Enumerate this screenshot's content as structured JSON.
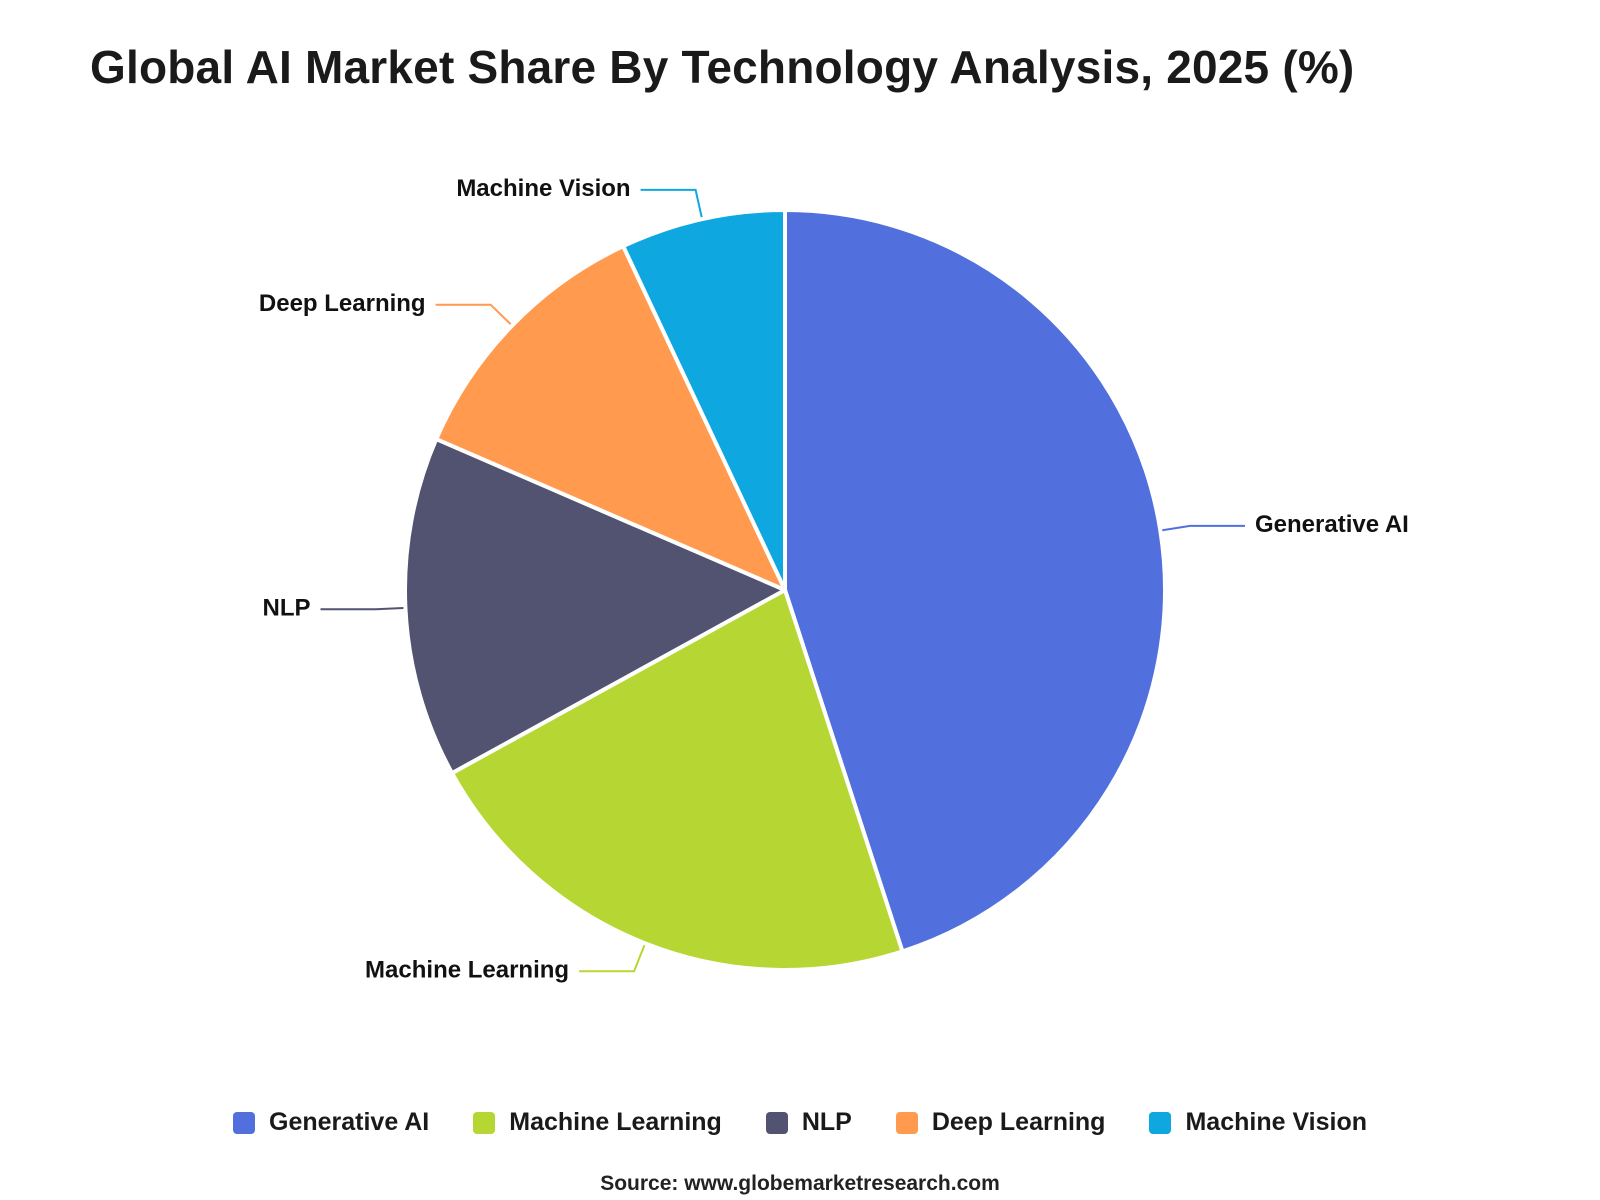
{
  "chart_data": {
    "type": "pie",
    "title": "Global AI Market Share By Technology Analysis, 2025 (%)",
    "slices": [
      {
        "name": "Generative AI",
        "value": 45.0,
        "color": "#5170DD"
      },
      {
        "name": "Machine Learning",
        "value": 22.0,
        "color": "#B6D733"
      },
      {
        "name": "NLP",
        "value": 14.5,
        "color": "#515370"
      },
      {
        "name": "Deep Learning",
        "value": 11.5,
        "color": "#FF9A4F"
      },
      {
        "name": "Machine Vision",
        "value": 7.0,
        "color": "#0FA7DF"
      }
    ],
    "start_angle_deg": 0,
    "direction": "clockwise",
    "legend_position": "bottom",
    "labels": "outside with leader lines"
  },
  "source": "Source: www.globemarketresearch.com"
}
